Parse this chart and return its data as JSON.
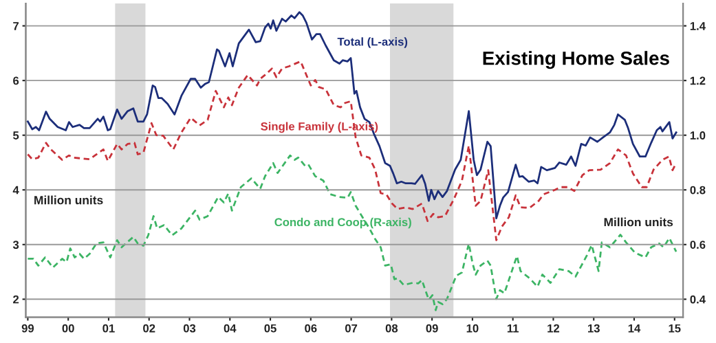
{
  "chart_data": {
    "type": "line",
    "title": "Existing Home Sales",
    "annotations": [
      "Million units",
      "Million units"
    ],
    "xlim": [
      1998.95,
      2015.21
    ],
    "ylim": [
      1.67,
      7.41
    ],
    "y2lim": [
      0.334,
      1.482
    ],
    "xticks": [
      {
        "value": 1999,
        "label": "99"
      },
      {
        "value": 2000,
        "label": "00"
      },
      {
        "value": 2001,
        "label": "01"
      },
      {
        "value": 2002,
        "label": "02"
      },
      {
        "value": 2003,
        "label": "03"
      },
      {
        "value": 2004,
        "label": "04"
      },
      {
        "value": 2005,
        "label": "05"
      },
      {
        "value": 2006,
        "label": "06"
      },
      {
        "value": 2007,
        "label": "07"
      },
      {
        "value": 2008,
        "label": "08"
      },
      {
        "value": 2009,
        "label": "09"
      },
      {
        "value": 2010,
        "label": "10"
      },
      {
        "value": 2011,
        "label": "11"
      },
      {
        "value": 2012,
        "label": "12"
      },
      {
        "value": 2013,
        "label": "13"
      },
      {
        "value": 2014,
        "label": "14"
      },
      {
        "value": 2015,
        "label": "15"
      }
    ],
    "yticks": [
      2,
      3,
      4,
      5,
      6,
      7
    ],
    "y2ticks": [
      0.4,
      0.6,
      0.8,
      {
        "value": 1.0,
        "label": "1.0"
      },
      1.2,
      1.4
    ],
    "grid": "y",
    "legend": false,
    "marker": "none",
    "bands": [
      {
        "axis": "x",
        "from": 2001.16,
        "to": 2001.91,
        "color": "#d9d9d9"
      },
      {
        "axis": "x",
        "from": 2007.96,
        "to": 2009.53,
        "color": "#d9d9d9"
      }
    ],
    "series": [
      {
        "name": "Total (L-axis)",
        "color": "#1c2e7a",
        "line_style": "solid",
        "axis": "y",
        "x": [
          1999.0,
          1999.11,
          1999.2,
          1999.28,
          1999.45,
          1999.54,
          1999.74,
          1999.94,
          2000.02,
          2000.11,
          2000.28,
          2000.39,
          2000.53,
          2000.73,
          2000.79,
          2000.87,
          2000.98,
          2001.04,
          2001.21,
          2001.32,
          2001.47,
          2001.61,
          2001.72,
          2001.86,
          2001.95,
          2002.09,
          2002.15,
          2002.23,
          2002.31,
          2002.46,
          2002.63,
          2002.8,
          2003.03,
          2003.14,
          2003.28,
          2003.39,
          2003.48,
          2003.68,
          2003.73,
          2003.88,
          2003.99,
          2004.07,
          2004.22,
          2004.47,
          2004.64,
          2004.75,
          2004.87,
          2004.95,
          2005.01,
          2005.07,
          2005.15,
          2005.29,
          2005.38,
          2005.52,
          2005.6,
          2005.72,
          2005.8,
          2005.89,
          2006.03,
          2006.14,
          2006.23,
          2006.37,
          2006.57,
          2006.71,
          2006.79,
          2006.91,
          2006.99,
          2007.08,
          2007.13,
          2007.22,
          2007.33,
          2007.45,
          2007.56,
          2007.7,
          2007.84,
          2007.96,
          2008.04,
          2008.13,
          2008.24,
          2008.35,
          2008.49,
          2008.58,
          2008.75,
          2008.83,
          2008.92,
          2008.98,
          2009.06,
          2009.15,
          2009.26,
          2009.37,
          2009.57,
          2009.71,
          2009.91,
          2010.03,
          2010.11,
          2010.2,
          2010.37,
          2010.45,
          2010.59,
          2010.68,
          2010.76,
          2010.88,
          2011.07,
          2011.16,
          2011.24,
          2011.39,
          2011.53,
          2011.61,
          2011.7,
          2011.84,
          2012.04,
          2012.15,
          2012.32,
          2012.44,
          2012.55,
          2012.69,
          2012.8,
          2012.91,
          2013.09,
          2013.23,
          2013.4,
          2013.51,
          2013.6,
          2013.77,
          2013.85,
          2013.97,
          2014.14,
          2014.28,
          2014.42,
          2014.56,
          2014.65,
          2014.7,
          2014.87,
          2014.95,
          2015.04
        ],
        "values": [
          5.25,
          5.11,
          5.15,
          5.09,
          5.43,
          5.3,
          5.15,
          5.09,
          5.24,
          5.15,
          5.19,
          5.13,
          5.13,
          5.3,
          5.25,
          5.34,
          5.09,
          5.11,
          5.47,
          5.3,
          5.44,
          5.49,
          5.25,
          5.25,
          5.38,
          5.91,
          5.88,
          5.68,
          5.68,
          5.57,
          5.38,
          5.72,
          6.03,
          6.03,
          5.87,
          5.94,
          5.97,
          6.57,
          6.54,
          6.26,
          6.5,
          6.26,
          6.68,
          6.93,
          6.7,
          6.72,
          6.97,
          7.04,
          6.95,
          7.1,
          6.91,
          7.13,
          7.08,
          7.19,
          7.14,
          7.25,
          7.19,
          7.06,
          6.75,
          6.85,
          6.85,
          6.64,
          6.37,
          6.31,
          6.37,
          6.35,
          6.41,
          5.76,
          5.81,
          5.51,
          5.3,
          5.24,
          5.03,
          4.8,
          4.49,
          4.44,
          4.3,
          4.12,
          4.15,
          4.12,
          4.12,
          4.11,
          4.27,
          4.11,
          3.8,
          4.0,
          3.83,
          3.98,
          3.87,
          3.98,
          4.37,
          4.55,
          5.44,
          4.55,
          4.27,
          4.37,
          4.88,
          4.8,
          3.48,
          3.71,
          3.86,
          3.96,
          4.46,
          4.24,
          4.25,
          4.15,
          4.17,
          4.12,
          4.42,
          4.36,
          4.4,
          4.5,
          4.46,
          4.61,
          4.44,
          4.84,
          4.81,
          4.96,
          4.88,
          4.96,
          5.05,
          5.19,
          5.38,
          5.28,
          5.13,
          4.84,
          4.61,
          4.61,
          4.86,
          5.09,
          5.15,
          5.07,
          5.24,
          4.94,
          5.05
        ]
      },
      {
        "name": "Single Family (L-axis)",
        "color": "#c8323a",
        "line_style": "dashed",
        "axis": "y",
        "x": [
          1999.0,
          1999.11,
          1999.26,
          1999.45,
          1999.57,
          1999.85,
          2000.02,
          2000.13,
          2000.53,
          2000.87,
          2000.98,
          2001.21,
          2001.32,
          2001.47,
          2001.64,
          2001.72,
          2001.86,
          2002.06,
          2002.18,
          2002.35,
          2002.6,
          2002.8,
          2003.03,
          2003.25,
          2003.45,
          2003.65,
          2003.85,
          2003.96,
          2004.05,
          2004.22,
          2004.44,
          2004.67,
          2004.75,
          2004.9,
          2005.04,
          2005.15,
          2005.29,
          2005.46,
          2005.75,
          2006.0,
          2006.11,
          2006.2,
          2006.37,
          2006.57,
          2006.74,
          2006.85,
          2006.99,
          2007.11,
          2007.25,
          2007.45,
          2007.59,
          2007.73,
          2007.87,
          2008.01,
          2008.15,
          2008.35,
          2008.52,
          2008.75,
          2008.89,
          2009.03,
          2009.15,
          2009.32,
          2009.54,
          2009.74,
          2009.91,
          2010.08,
          2010.2,
          2010.39,
          2010.59,
          2010.73,
          2010.9,
          2011.07,
          2011.19,
          2011.41,
          2011.64,
          2011.76,
          2012.04,
          2012.18,
          2012.35,
          2012.52,
          2012.72,
          2012.89,
          2013.17,
          2013.4,
          2013.6,
          2013.8,
          2013.97,
          2014.19,
          2014.31,
          2014.48,
          2014.7,
          2014.86,
          2014.95,
          2015.04
        ],
        "values": [
          4.65,
          4.56,
          4.59,
          4.86,
          4.74,
          4.55,
          4.63,
          4.59,
          4.56,
          4.74,
          4.53,
          4.84,
          4.74,
          4.84,
          4.86,
          4.65,
          4.68,
          5.22,
          5.0,
          4.99,
          4.74,
          5.05,
          5.32,
          5.18,
          5.28,
          5.81,
          5.51,
          5.69,
          5.55,
          5.87,
          6.1,
          5.91,
          6.03,
          6.12,
          6.22,
          6.06,
          6.22,
          6.26,
          6.35,
          5.91,
          6.01,
          5.88,
          5.84,
          5.55,
          5.51,
          5.59,
          5.62,
          4.96,
          4.63,
          4.59,
          4.38,
          3.94,
          3.92,
          3.75,
          3.65,
          3.68,
          3.65,
          3.75,
          3.43,
          3.56,
          3.5,
          3.52,
          3.83,
          4.17,
          4.81,
          3.71,
          3.8,
          4.36,
          3.08,
          3.33,
          3.5,
          3.9,
          3.68,
          3.67,
          3.8,
          3.92,
          4.0,
          4.05,
          4.05,
          3.98,
          4.27,
          4.36,
          4.37,
          4.49,
          4.74,
          4.63,
          4.3,
          4.05,
          4.05,
          4.37,
          4.55,
          4.61,
          4.36,
          4.49
        ]
      },
      {
        "name": "Condo and Coop (R-axis)",
        "color": "#3cb464",
        "line_style": "dashed",
        "axis": "y2",
        "x": [
          1999.0,
          1999.14,
          1999.26,
          1999.43,
          1999.62,
          1999.85,
          1999.96,
          2000.05,
          2000.16,
          2000.28,
          2000.39,
          2000.53,
          2000.7,
          2000.87,
          2001.04,
          2001.21,
          2001.32,
          2001.61,
          2001.72,
          2001.86,
          2001.98,
          2002.11,
          2002.2,
          2002.37,
          2002.57,
          2002.8,
          2003.14,
          2003.25,
          2003.45,
          2003.71,
          2003.85,
          2003.96,
          2004.05,
          2004.27,
          2004.53,
          2004.75,
          2004.87,
          2005.07,
          2005.18,
          2005.49,
          2005.6,
          2005.69,
          2005.86,
          2005.94,
          2006.11,
          2006.31,
          2006.48,
          2006.71,
          2006.91,
          2006.99,
          2007.11,
          2007.28,
          2007.45,
          2007.59,
          2007.73,
          2007.84,
          2007.98,
          2008.07,
          2008.15,
          2008.3,
          2008.52,
          2008.66,
          2008.75,
          2008.83,
          2008.92,
          2009.01,
          2009.09,
          2009.15,
          2009.26,
          2009.37,
          2009.6,
          2009.74,
          2009.91,
          2010.0,
          2010.08,
          2010.2,
          2010.37,
          2010.45,
          2010.59,
          2010.68,
          2010.79,
          2011.1,
          2011.19,
          2011.41,
          2011.61,
          2011.73,
          2011.93,
          2012.15,
          2012.38,
          2012.55,
          2012.83,
          2012.95,
          2013.12,
          2013.2,
          2013.4,
          2013.66,
          2013.8,
          2014.02,
          2014.28,
          2014.42,
          2014.62,
          2014.73,
          2014.87,
          2015.04
        ],
        "values": [
          0.548,
          0.548,
          0.523,
          0.553,
          0.516,
          0.548,
          0.536,
          0.586,
          0.553,
          0.566,
          0.548,
          0.566,
          0.604,
          0.608,
          0.553,
          0.616,
          0.59,
          0.628,
          0.604,
          0.596,
          0.634,
          0.704,
          0.659,
          0.671,
          0.634,
          0.659,
          0.724,
          0.691,
          0.704,
          0.774,
          0.754,
          0.787,
          0.724,
          0.81,
          0.842,
          0.804,
          0.85,
          0.898,
          0.862,
          0.926,
          0.91,
          0.918,
          0.888,
          0.893,
          0.85,
          0.834,
          0.784,
          0.774,
          0.771,
          0.792,
          0.742,
          0.7,
          0.659,
          0.621,
          0.59,
          0.523,
          0.528,
          0.473,
          0.477,
          0.452,
          0.46,
          0.458,
          0.47,
          0.435,
          0.398,
          0.415,
          0.36,
          0.39,
          0.382,
          0.401,
          0.486,
          0.498,
          0.604,
          0.533,
          0.49,
          0.523,
          0.541,
          0.523,
          0.401,
          0.433,
          0.422,
          0.558,
          0.503,
          0.477,
          0.446,
          0.49,
          0.46,
          0.51,
          0.503,
          0.483,
          0.56,
          0.598,
          0.503,
          0.608,
          0.59,
          0.636,
          0.608,
          0.57,
          0.553,
          0.59,
          0.604,
          0.59,
          0.624,
          0.574
        ]
      }
    ]
  }
}
